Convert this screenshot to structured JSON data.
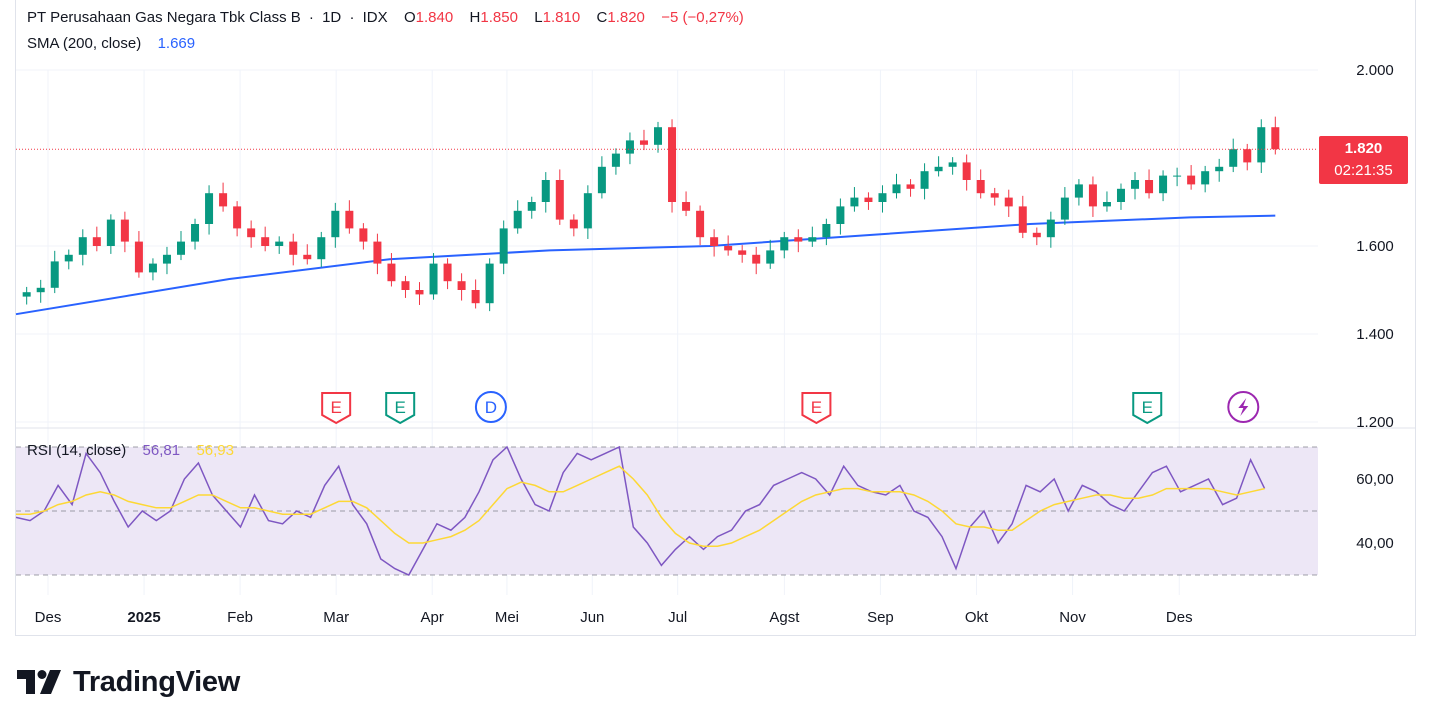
{
  "header": {
    "symbol_name": "PT Perusahaan Gas Negara Tbk Class B",
    "separator": "·",
    "interval": "1D",
    "exchange": "IDX",
    "o_label": "O",
    "o_value": "1.840",
    "h_label": "H",
    "h_value": "1.850",
    "l_label": "L",
    "l_value": "1.810",
    "c_label": "C",
    "c_value": "1.820",
    "change": "−5 (−0,27%)"
  },
  "sma_legend": {
    "label": "SMA (200, close)",
    "value": "1.669"
  },
  "rsi_legend": {
    "label": "RSI (14, close)",
    "value": "56,81",
    "ma_value": "56,93"
  },
  "price_badge": {
    "price": "1.820",
    "countdown": "02:21:35"
  },
  "brand": {
    "name": "TradingView"
  },
  "colors": {
    "up": "#089981",
    "down": "#f23645",
    "sma": "#2962ff",
    "rsi": "#7e57c2",
    "rsi_ma": "#fdd835",
    "rsi_band": "#ede7f6",
    "grid": "#f0f3fa",
    "axis_text": "#131722"
  },
  "events": [
    {
      "label": "E",
      "kind": "earnings",
      "color": "#f23645",
      "x": 30
    },
    {
      "label": "E",
      "kind": "earnings",
      "color": "#089981",
      "x": 36
    },
    {
      "label": "D",
      "kind": "dividend",
      "color": "#2962ff",
      "x": 44.5
    },
    {
      "label": "E",
      "kind": "earnings",
      "color": "#f23645",
      "x": 75
    },
    {
      "label": "E",
      "kind": "earnings",
      "color": "#089981",
      "x": 106
    },
    {
      "label": "",
      "kind": "flash",
      "color": "#9c27b0",
      "icon": "lightning-icon",
      "x": 115
    }
  ],
  "chart_data": [
    {
      "type": "candlestick",
      "title": "PT Perusahaan Gas Negara Tbk Class B · 1D · IDX",
      "x_unit": "weeks",
      "ylim": [
        1200,
        2000
      ],
      "ytick_labels": [
        "2.000",
        "1.600",
        "1.400",
        "1.200"
      ],
      "ytick_values": [
        2000,
        1600,
        1400,
        1200
      ],
      "xtick_labels": [
        "Des",
        "2025",
        "Feb",
        "Mar",
        "Apr",
        "Mei",
        "Jun",
        "Jul",
        "Agst",
        "Sep",
        "Okt",
        "Nov",
        "Des"
      ],
      "xtick_positions": [
        3,
        12,
        21,
        30,
        39,
        46,
        54,
        62,
        72,
        81,
        90,
        99,
        109
      ],
      "x_range": [
        0,
        122
      ],
      "closes": [
        1495,
        1505,
        1565,
        1580,
        1620,
        1600,
        1660,
        1610,
        1540,
        1560,
        1580,
        1610,
        1650,
        1720,
        1690,
        1640,
        1620,
        1600,
        1610,
        1580,
        1570,
        1620,
        1680,
        1640,
        1610,
        1560,
        1520,
        1500,
        1490,
        1560,
        1520,
        1500,
        1470,
        1560,
        1640,
        1680,
        1700,
        1750,
        1660,
        1640,
        1720,
        1780,
        1810,
        1840,
        1830,
        1870,
        1700,
        1680,
        1620,
        1600,
        1590,
        1580,
        1560,
        1590,
        1620,
        1610,
        1620,
        1650,
        1690,
        1710,
        1700,
        1720,
        1740,
        1730,
        1770,
        1780,
        1790,
        1750,
        1720,
        1710,
        1690,
        1630,
        1620,
        1660,
        1710,
        1740,
        1690,
        1700,
        1730,
        1750,
        1720,
        1760,
        1760,
        1740,
        1770,
        1780,
        1820,
        1790,
        1870,
        1820
      ],
      "series": [
        {
          "name": "SMA (200, close)",
          "x": [
            0,
            20,
            35,
            50,
            65,
            80,
            95,
            110,
            118
          ],
          "values": [
            1445,
            1525,
            1570,
            1590,
            1600,
            1625,
            1650,
            1665,
            1669
          ]
        },
        {
          "name": "PT Perusahaan Gas Negara Tbk Class B",
          "last_close": 1820,
          "open": 1840,
          "high": 1850,
          "low": 1810
        }
      ]
    },
    {
      "type": "line",
      "title": "RSI (14, close)",
      "ylim": [
        25,
        75
      ],
      "ytick_labels": [
        "60,00",
        "40,00"
      ],
      "ytick_values": [
        60,
        40
      ],
      "bands": [
        70,
        50,
        30
      ],
      "series": [
        {
          "name": "RSI",
          "values": [
            48,
            47,
            50,
            58,
            52,
            68,
            62,
            53,
            45,
            50,
            47,
            50,
            60,
            65,
            55,
            50,
            45,
            55,
            47,
            46,
            50,
            48,
            58,
            64,
            52,
            46,
            35,
            32,
            30,
            38,
            46,
            44,
            48,
            56,
            66,
            70,
            60,
            52,
            50,
            62,
            68,
            66,
            68,
            70,
            45,
            40,
            33,
            38,
            42,
            38,
            42,
            44,
            50,
            52,
            58,
            60,
            62,
            60,
            55,
            64,
            58,
            56,
            55,
            58,
            50,
            48,
            42,
            32,
            45,
            50,
            40,
            46,
            58,
            56,
            60,
            50,
            58,
            56,
            52,
            50,
            56,
            62,
            64,
            56,
            58,
            60,
            52,
            54,
            66,
            57
          ]
        },
        {
          "name": "MA",
          "values": [
            49,
            49,
            50,
            52,
            53,
            55,
            56,
            55,
            53,
            52,
            51,
            51,
            53,
            55,
            55,
            53,
            51,
            51,
            50,
            49,
            49,
            49,
            51,
            53,
            53,
            51,
            47,
            43,
            40,
            40,
            41,
            42,
            44,
            47,
            52,
            57,
            59,
            58,
            56,
            56,
            58,
            60,
            62,
            64,
            60,
            55,
            48,
            43,
            40,
            39,
            39,
            40,
            42,
            44,
            47,
            50,
            53,
            55,
            56,
            57,
            57,
            56,
            56,
            56,
            55,
            53,
            50,
            46,
            45,
            45,
            44,
            44,
            47,
            50,
            52,
            53,
            54,
            55,
            55,
            54,
            54,
            55,
            57,
            57,
            57,
            57,
            56,
            55,
            56,
            57
          ]
        }
      ]
    }
  ]
}
